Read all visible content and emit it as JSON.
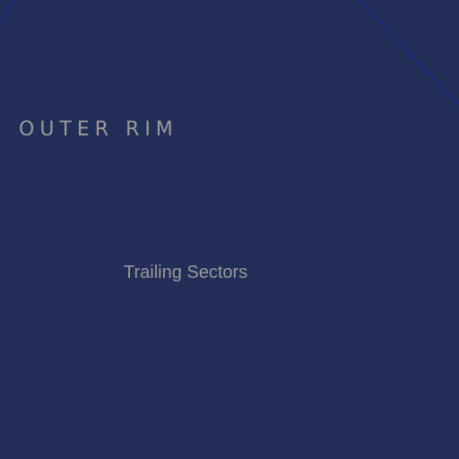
{
  "map": {
    "background_color": "#232e58",
    "line_color": "#1b2a8c",
    "label_color": "#9a9a9a",
    "region_label": "OUTER RIM",
    "sector_label": "Trailing Sectors"
  }
}
